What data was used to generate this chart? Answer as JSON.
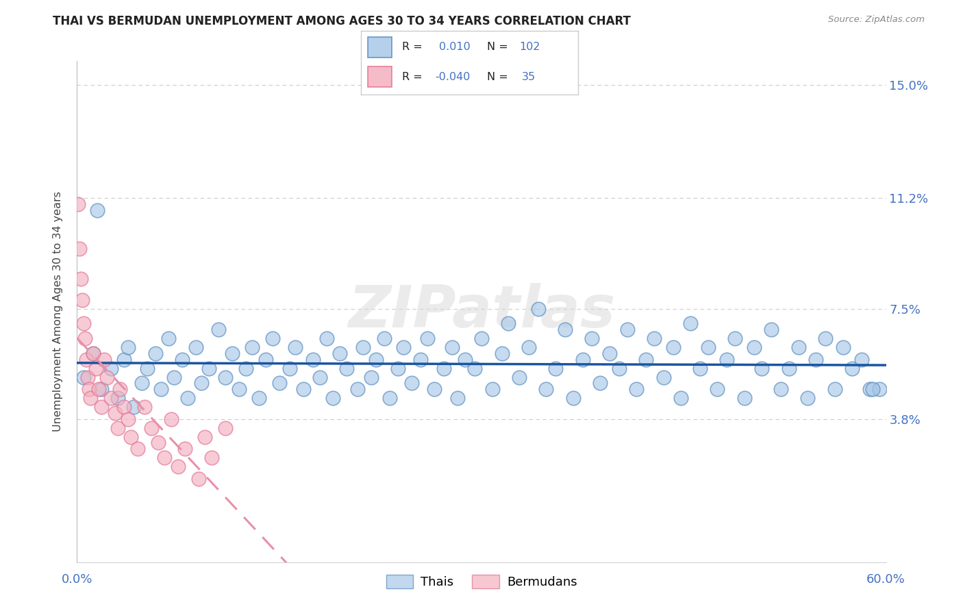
{
  "title": "THAI VS BERMUDAN UNEMPLOYMENT AMONG AGES 30 TO 34 YEARS CORRELATION CHART",
  "source": "Source: ZipAtlas.com",
  "ylabel": "Unemployment Among Ages 30 to 34 years",
  "xlim": [
    0.0,
    0.6
  ],
  "ylim": [
    -0.01,
    0.158
  ],
  "xtick_positions": [
    0.0,
    0.6
  ],
  "xticklabels": [
    "0.0%",
    "60.0%"
  ],
  "ytick_positions": [
    0.038,
    0.075,
    0.112,
    0.15
  ],
  "ytick_labels": [
    "3.8%",
    "7.5%",
    "11.2%",
    "15.0%"
  ],
  "thai_color": "#a8c8e8",
  "bermudan_color": "#f4b0c0",
  "thai_edge_color": "#5588bb",
  "bermudan_edge_color": "#e07090",
  "thai_R": 0.01,
  "thai_N": 102,
  "bermudan_R": -0.04,
  "bermudan_N": 35,
  "trend_thai_color": "#1a55a0",
  "trend_berm_color": "#e890a8",
  "watermark": "ZIPatlas",
  "legend_label_thai": "Thais",
  "legend_label_bermudan": "Bermudans",
  "label_color": "#4472c4",
  "grid_color": "#cccccc",
  "title_color": "#222222",
  "source_color": "#888888",
  "thai_x": [
    0.005,
    0.012,
    0.018,
    0.025,
    0.03,
    0.035,
    0.038,
    0.042,
    0.048,
    0.052,
    0.058,
    0.062,
    0.068,
    0.072,
    0.078,
    0.082,
    0.088,
    0.092,
    0.098,
    0.105,
    0.11,
    0.115,
    0.12,
    0.125,
    0.13,
    0.135,
    0.14,
    0.145,
    0.15,
    0.158,
    0.162,
    0.168,
    0.175,
    0.18,
    0.185,
    0.19,
    0.195,
    0.2,
    0.208,
    0.212,
    0.218,
    0.222,
    0.228,
    0.232,
    0.238,
    0.242,
    0.248,
    0.255,
    0.26,
    0.265,
    0.272,
    0.278,
    0.282,
    0.288,
    0.295,
    0.3,
    0.308,
    0.315,
    0.32,
    0.328,
    0.335,
    0.342,
    0.348,
    0.355,
    0.362,
    0.368,
    0.375,
    0.382,
    0.388,
    0.395,
    0.402,
    0.408,
    0.415,
    0.422,
    0.428,
    0.435,
    0.442,
    0.448,
    0.455,
    0.462,
    0.468,
    0.475,
    0.482,
    0.488,
    0.495,
    0.502,
    0.508,
    0.515,
    0.522,
    0.528,
    0.535,
    0.542,
    0.548,
    0.555,
    0.562,
    0.568,
    0.575,
    0.582,
    0.588,
    0.595,
    0.015,
    0.59
  ],
  "thai_y": [
    0.052,
    0.06,
    0.048,
    0.055,
    0.045,
    0.058,
    0.062,
    0.042,
    0.05,
    0.055,
    0.06,
    0.048,
    0.065,
    0.052,
    0.058,
    0.045,
    0.062,
    0.05,
    0.055,
    0.068,
    0.052,
    0.06,
    0.048,
    0.055,
    0.062,
    0.045,
    0.058,
    0.065,
    0.05,
    0.055,
    0.062,
    0.048,
    0.058,
    0.052,
    0.065,
    0.045,
    0.06,
    0.055,
    0.048,
    0.062,
    0.052,
    0.058,
    0.065,
    0.045,
    0.055,
    0.062,
    0.05,
    0.058,
    0.065,
    0.048,
    0.055,
    0.062,
    0.045,
    0.058,
    0.055,
    0.065,
    0.048,
    0.06,
    0.07,
    0.052,
    0.062,
    0.075,
    0.048,
    0.055,
    0.068,
    0.045,
    0.058,
    0.065,
    0.05,
    0.06,
    0.055,
    0.068,
    0.048,
    0.058,
    0.065,
    0.052,
    0.062,
    0.045,
    0.07,
    0.055,
    0.062,
    0.048,
    0.058,
    0.065,
    0.045,
    0.062,
    0.055,
    0.068,
    0.048,
    0.055,
    0.062,
    0.045,
    0.058,
    0.065,
    0.048,
    0.062,
    0.055,
    0.058,
    0.048,
    0.048,
    0.108,
    0.048
  ],
  "berm_x": [
    0.001,
    0.002,
    0.003,
    0.004,
    0.005,
    0.006,
    0.007,
    0.008,
    0.009,
    0.01,
    0.012,
    0.014,
    0.016,
    0.018,
    0.02,
    0.022,
    0.025,
    0.028,
    0.03,
    0.032,
    0.035,
    0.038,
    0.04,
    0.045,
    0.05,
    0.055,
    0.06,
    0.065,
    0.07,
    0.075,
    0.08,
    0.09,
    0.095,
    0.1,
    0.11
  ],
  "berm_y": [
    0.11,
    0.095,
    0.085,
    0.078,
    0.07,
    0.065,
    0.058,
    0.052,
    0.048,
    0.045,
    0.06,
    0.055,
    0.048,
    0.042,
    0.058,
    0.052,
    0.045,
    0.04,
    0.035,
    0.048,
    0.042,
    0.038,
    0.032,
    0.028,
    0.042,
    0.035,
    0.03,
    0.025,
    0.038,
    0.022,
    0.028,
    0.018,
    0.032,
    0.025,
    0.035
  ]
}
